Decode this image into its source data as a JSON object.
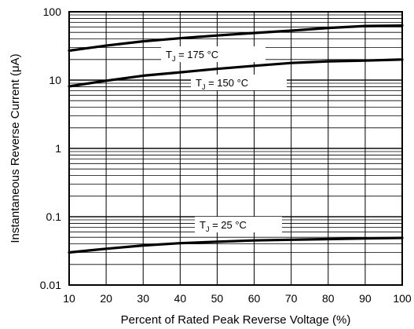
{
  "chart_data": {
    "type": "line",
    "xlabel": "Percent of Rated Peak Reverse Voltage (%)",
    "ylabel": "Instantaneous Reverse Current (μA)",
    "xlim": [
      10,
      100
    ],
    "ylim": [
      0.01,
      100
    ],
    "y_scale": "log",
    "grid": true,
    "x_ticks": [
      10,
      20,
      30,
      40,
      50,
      60,
      70,
      80,
      90,
      100
    ],
    "x_tick_labels": [
      "10",
      "20",
      "30",
      "40",
      "50",
      "60",
      "70",
      "80",
      "90",
      "100"
    ],
    "y_ticks": [
      0.01,
      0.1,
      1,
      10,
      100
    ],
    "y_tick_labels": [
      "0.01",
      "0.1",
      "1",
      "10",
      "100"
    ],
    "series": [
      {
        "annotation": {
          "prefix": "T",
          "sub": "J",
          "suffix": " = 175 °C"
        },
        "x": [
          10,
          20,
          30,
          40,
          50,
          60,
          70,
          80,
          90,
          100
        ],
        "y": [
          27,
          32,
          37,
          41,
          45,
          49,
          53,
          58,
          62,
          63
        ]
      },
      {
        "annotation": {
          "prefix": "T",
          "sub": "J",
          "suffix": " = 150 °C"
        },
        "x": [
          10,
          20,
          30,
          40,
          50,
          60,
          70,
          80,
          90,
          100
        ],
        "y": [
          8.1,
          9.8,
          11.6,
          13.0,
          14.6,
          16.2,
          17.8,
          18.8,
          19.3,
          20
        ]
      },
      {
        "annotation": {
          "prefix": "T",
          "sub": "J",
          "suffix": " = 25 °C"
        },
        "x": [
          10,
          20,
          30,
          40,
          50,
          60,
          70,
          80,
          90,
          100
        ],
        "y": [
          0.03,
          0.034,
          0.038,
          0.041,
          0.043,
          0.045,
          0.046,
          0.047,
          0.048,
          0.049
        ]
      }
    ]
  }
}
